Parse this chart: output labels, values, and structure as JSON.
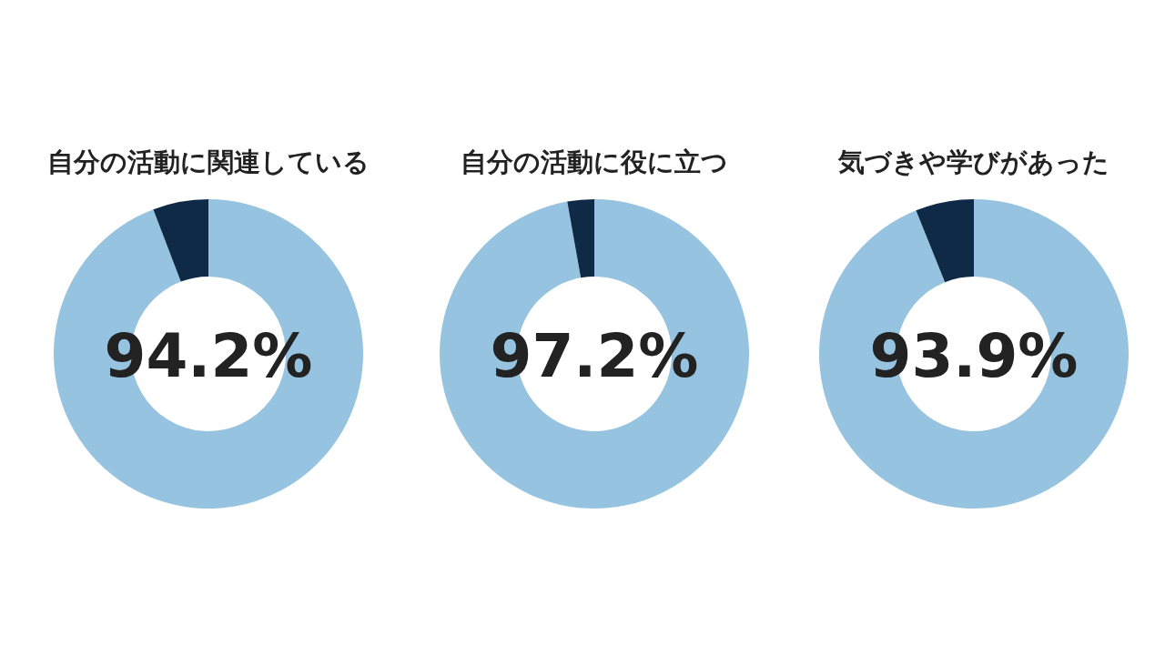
{
  "chart_data": [
    {
      "type": "donut",
      "title": "自分の活動に関連している",
      "categories": [
        null,
        null
      ],
      "values": [
        94.2,
        5.8
      ],
      "colors": [
        "#96c3e0",
        "#0e2a47"
      ],
      "value_labels": [
        "94.2%",
        null
      ]
    },
    {
      "type": "donut",
      "title": "自分の活動に役に立つ",
      "categories": [
        null,
        null
      ],
      "values": [
        97.2,
        2.8
      ],
      "colors": [
        "#96c3e0",
        "#0e2a47"
      ],
      "value_labels": [
        "97.2%",
        null
      ]
    },
    {
      "type": "donut",
      "title": "気づきや学びがあった",
      "categories": [
        null,
        null
      ],
      "values": [
        93.9,
        6.1
      ],
      "colors": [
        "#96c3e0",
        "#0e2a47"
      ],
      "value_labels": [
        "93.9%",
        null
      ]
    }
  ]
}
